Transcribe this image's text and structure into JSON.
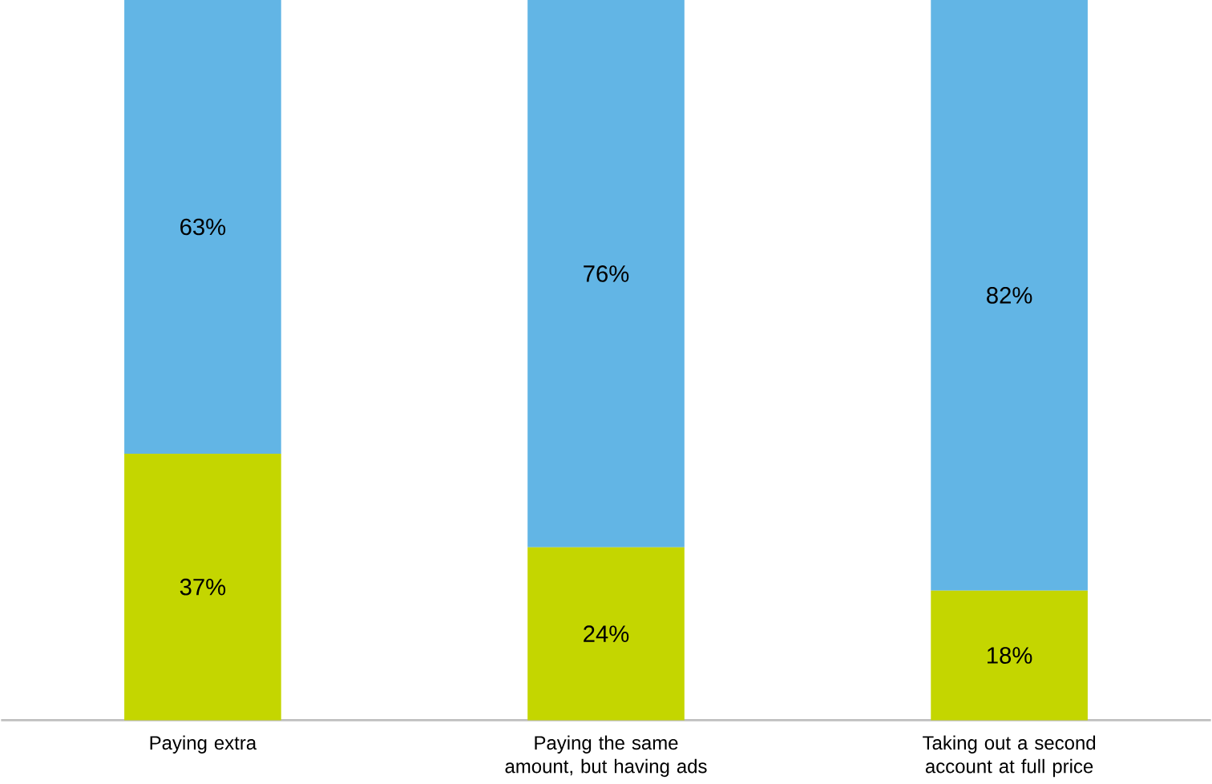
{
  "chart_data": {
    "type": "bar",
    "stacked": true,
    "categories": [
      "Paying extra",
      "Paying the same amount, but having ads",
      "Taking out a second account at full price"
    ],
    "series": [
      {
        "color": "#c4d600",
        "values": [
          37,
          24,
          18
        ],
        "value_labels": [
          "37%",
          "24%",
          "18%"
        ]
      },
      {
        "color": "#62b5e5",
        "values": [
          63,
          76,
          82
        ],
        "value_labels": [
          "63%",
          "76%",
          "82%"
        ]
      }
    ],
    "ylim": [
      0,
      100
    ],
    "tick_labels": "x"
  }
}
